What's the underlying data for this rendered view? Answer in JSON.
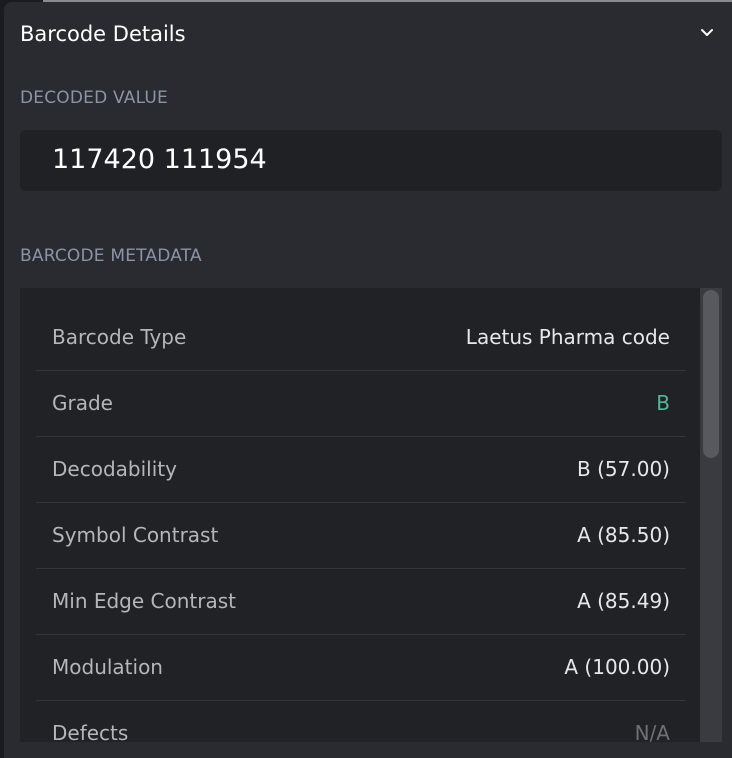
{
  "header": {
    "title": "Barcode Details",
    "collapse_icon": "chevron-down-icon"
  },
  "decoded": {
    "label": "DECODED VALUE",
    "value": "117420 111954"
  },
  "metadata": {
    "label": "BARCODE METADATA",
    "rows": [
      {
        "key": "Barcode Type",
        "value": "Laetus Pharma code"
      },
      {
        "key": "Grade",
        "value": "B",
        "color": "#4fb896"
      },
      {
        "key": "Decodability",
        "value": "B (57.00)"
      },
      {
        "key": "Symbol Contrast",
        "value": "A (85.50)"
      },
      {
        "key": "Min Edge Contrast",
        "value": "A (85.49)"
      },
      {
        "key": "Modulation",
        "value": "A (100.00)"
      },
      {
        "key": "Defects",
        "value": "N/A",
        "color": "#6e7076"
      }
    ]
  }
}
